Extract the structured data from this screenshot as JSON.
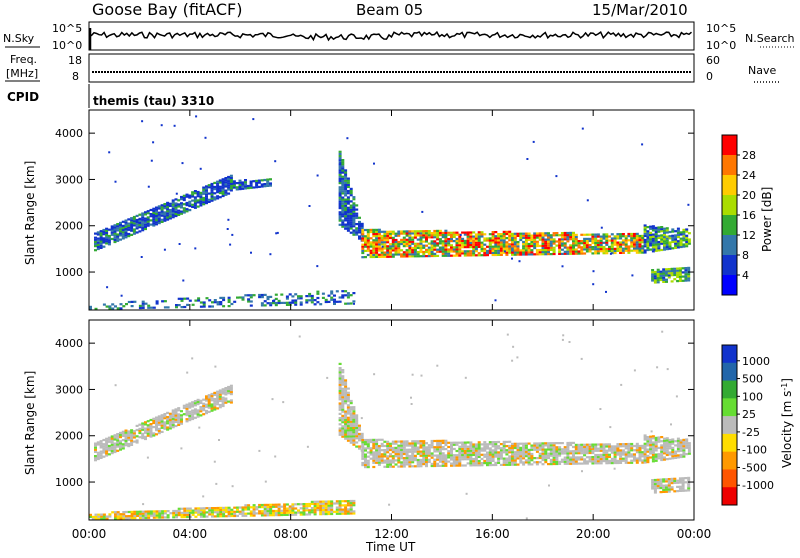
{
  "header": {
    "station": "Goose Bay (fitACF)",
    "beam": "Beam 05",
    "date": "15/Mar/2010"
  },
  "noise_panel": {
    "left_label": "N.Sky",
    "right_label": "N.Search",
    "left_ticks": [
      "10^5",
      "10^0"
    ],
    "right_ticks": [
      "10^5",
      "10^0"
    ]
  },
  "freq_panel": {
    "left_label_line1": "Freq.",
    "left_label_line2": "[MHz]",
    "right_label": "Nave",
    "left_ticks": [
      "18",
      "8"
    ],
    "right_ticks": [
      "60",
      "0"
    ]
  },
  "cpid": {
    "label": "CPID",
    "value": "themis (tau) 3310"
  },
  "power_panel": {
    "ylabel": "Slant Range [km]",
    "yticks": [
      "4000",
      "3000",
      "2000",
      "1000"
    ],
    "colorbar_label": "Power [dB]",
    "colorbar_ticks": [
      "28",
      "24",
      "20",
      "16",
      "12",
      "8",
      "4"
    ],
    "colorbar_colors": [
      "#ff0000",
      "#ff7700",
      "#ffcc00",
      "#aadd00",
      "#33aa33",
      "#3377aa",
      "#1133cc",
      "#0000ff"
    ]
  },
  "velocity_panel": {
    "ylabel": "Slant Range [km]",
    "yticks": [
      "4000",
      "3000",
      "2000",
      "1000"
    ],
    "colorbar_label": "Velocity [m s",
    "colorbar_label_sup": "-1",
    "colorbar_label_end": "]",
    "colorbar_ticks": [
      "1000",
      "500",
      "100",
      "25",
      "-25",
      "-100",
      "-500",
      "-1000"
    ],
    "colorbar_colors": [
      "#1133cc",
      "#2266aa",
      "#33aa33",
      "#66dd33",
      "#bbbbbb",
      "#ffdd00",
      "#ff9900",
      "#ff5500",
      "#ee0000"
    ]
  },
  "x_axis": {
    "label": "Time UT",
    "ticks": [
      "00:00",
      "04:00",
      "08:00",
      "12:00",
      "16:00",
      "20:00",
      "00:00"
    ]
  },
  "chart_data": [
    {
      "type": "heatmap",
      "name": "power",
      "xlim": [
        0,
        24
      ],
      "ylim": [
        180,
        4500
      ],
      "regions": [
        {
          "t": [
            0.2,
            5.6
          ],
          "r0": [
            1450,
            2700
          ],
          "r1": [
            1850,
            3100
          ],
          "level": "low"
        },
        {
          "t": [
            5.6,
            7.2
          ],
          "r0": [
            2750,
            2850
          ],
          "r1": [
            2950,
            3000
          ],
          "level": "low"
        },
        {
          "t": [
            9.9,
            10.8
          ],
          "r0": [
            2000,
            1650
          ],
          "r1": [
            3600,
            2000
          ],
          "level": "low"
        },
        {
          "t": [
            10.8,
            22.0
          ],
          "r0": [
            1300,
            1400
          ],
          "r1": [
            1900,
            1800
          ],
          "level": "high"
        },
        {
          "t": [
            22.0,
            23.8
          ],
          "r0": [
            1400,
            1550
          ],
          "r1": [
            2000,
            1900
          ],
          "level": "mid"
        },
        {
          "t": [
            22.3,
            23.8
          ],
          "r0": [
            750,
            800
          ],
          "r1": [
            1050,
            1100
          ],
          "level": "mid"
        },
        {
          "t": [
            0.0,
            10.5
          ],
          "r0": [
            180,
            300
          ],
          "r1": [
            300,
            600
          ],
          "level": "ground"
        }
      ]
    },
    {
      "type": "heatmap",
      "name": "velocity",
      "xlim": [
        0,
        24
      ],
      "ylim": [
        180,
        4500
      ],
      "regions": [
        {
          "t": [
            0.2,
            5.6
          ],
          "r0": [
            1450,
            2700
          ],
          "r1": [
            1850,
            3100
          ],
          "v": 0
        },
        {
          "t": [
            9.9,
            10.8
          ],
          "r0": [
            2000,
            1650
          ],
          "r1": [
            3600,
            2000
          ],
          "v": 0
        },
        {
          "t": [
            10.8,
            22.0
          ],
          "r0": [
            1300,
            1400
          ],
          "r1": [
            1900,
            1800
          ],
          "v": 0
        },
        {
          "t": [
            22.0,
            23.8
          ],
          "r0": [
            1400,
            1550
          ],
          "r1": [
            2000,
            1900
          ],
          "v": 0
        },
        {
          "t": [
            22.3,
            23.8
          ],
          "r0": [
            750,
            800
          ],
          "r1": [
            1050,
            1100
          ],
          "v": 0
        },
        {
          "t": [
            0.0,
            10.5
          ],
          "r0": [
            180,
            300
          ],
          "r1": [
            300,
            600
          ],
          "v": -100
        }
      ]
    }
  ]
}
